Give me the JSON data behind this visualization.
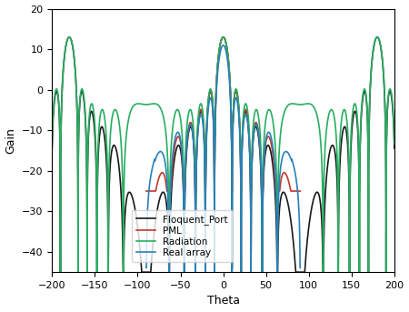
{
  "title": "",
  "xlabel": "Theta",
  "ylabel": "Gain",
  "xlim": [
    -200,
    200
  ],
  "ylim": [
    -45,
    20
  ],
  "xticks": [
    -200,
    -150,
    -100,
    -50,
    0,
    50,
    100,
    150,
    200
  ],
  "yticks": [
    -40,
    -30,
    -20,
    -10,
    0,
    10,
    20
  ],
  "legend": [
    "Floquent_Port",
    "PML",
    "Radiation",
    "Real array"
  ],
  "colors": [
    "#1a1a1a",
    "#c0392b",
    "#27ae60",
    "#2980b9"
  ],
  "linewidth": 1.2,
  "background": "#ffffff"
}
